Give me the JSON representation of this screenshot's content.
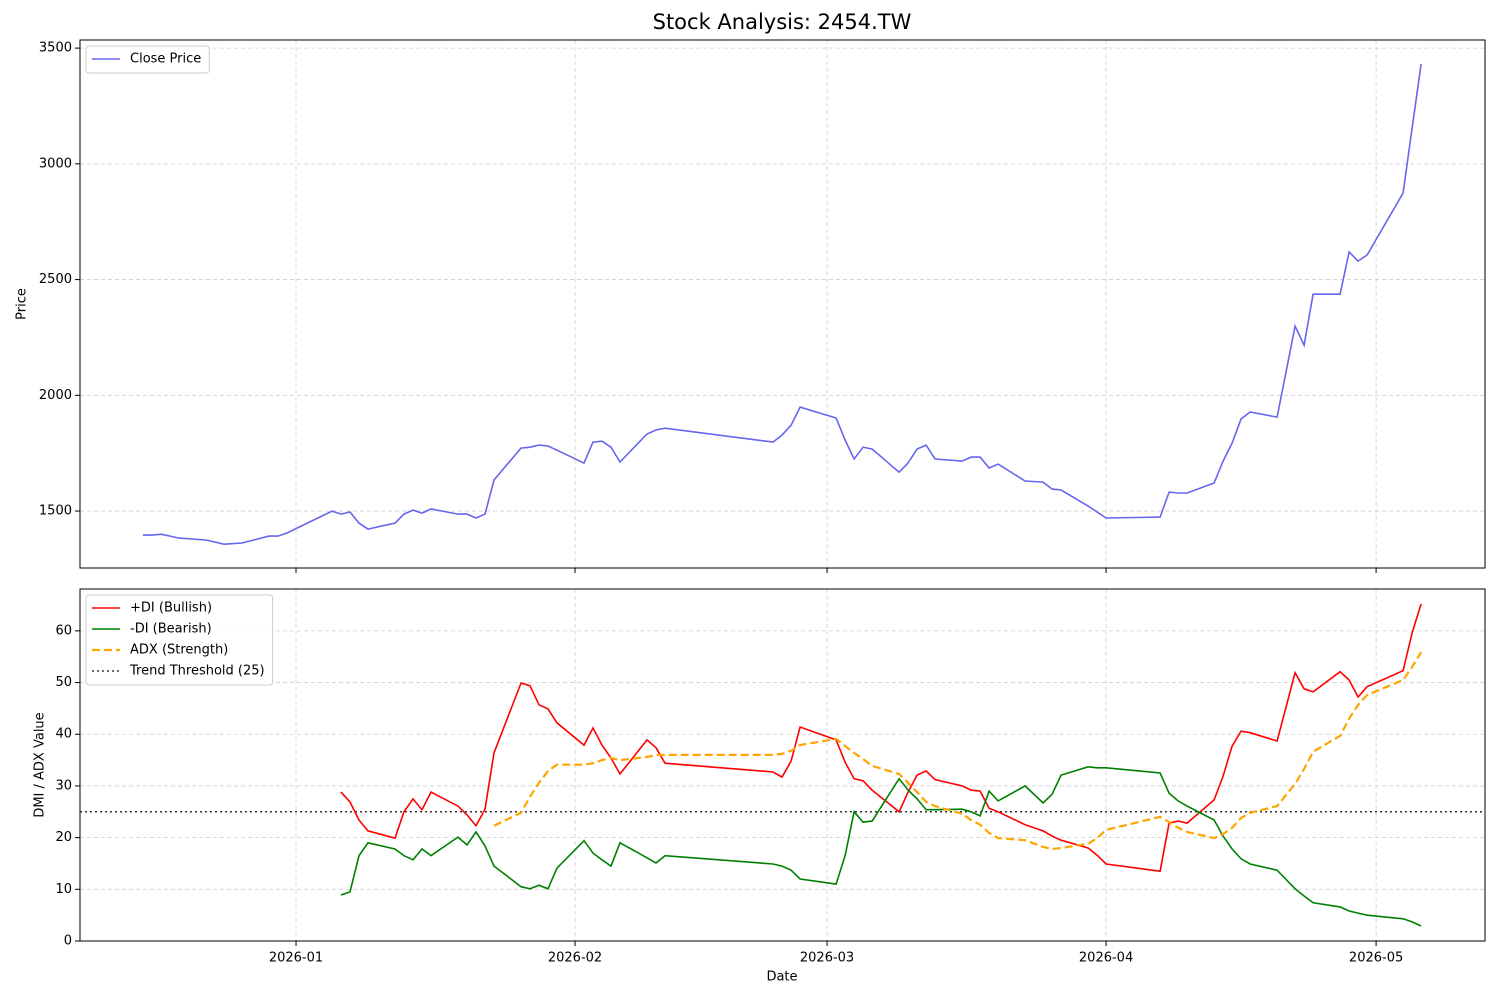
{
  "chart_data": [
    {
      "type": "line",
      "title": "Stock Analysis: 2454.TW",
      "ylabel": "Price",
      "x": [
        20437,
        20438,
        20439,
        20440,
        20441,
        20444,
        20446,
        20448,
        20451,
        20452,
        20453,
        20458,
        20459,
        20460,
        20461,
        20462,
        20465,
        20466,
        20467,
        20468,
        20469,
        20472,
        20473,
        20474,
        20475,
        20476,
        20479,
        20480,
        20481,
        20482,
        20483,
        20486,
        20487,
        20488,
        20489,
        20490,
        20493,
        20494,
        20495,
        20507,
        20508,
        20509,
        20510,
        20514,
        20515,
        20516,
        20517,
        20518,
        20521,
        20522,
        20523,
        20524,
        20525,
        20528,
        20529,
        20530,
        20531,
        20532,
        20535,
        20537,
        20538,
        20539,
        20542,
        20543,
        20544,
        20550,
        20551,
        20552,
        20553,
        20556,
        20557,
        20558,
        20559,
        20560,
        20563,
        20565,
        20566,
        20567,
        20570,
        20571,
        20572,
        20573,
        20577,
        20578,
        20579
      ],
      "series": [
        {
          "name": "Close Price",
          "color": "#6666ee",
          "linestyle": "solid",
          "values": [
            1396,
            1396,
            1400,
            1392,
            1383,
            1375,
            1357,
            1362,
            1392,
            1392,
            1405,
            1500,
            1487,
            1496,
            1448,
            1422,
            1448,
            1487,
            1504,
            1491,
            1509,
            1487,
            1487,
            1470,
            1487,
            1634,
            1772,
            1776,
            1785,
            1781,
            1763,
            1707,
            1798,
            1802,
            1776,
            1712,
            1833,
            1850,
            1858,
            1798,
            1828,
            1871,
            1949,
            1902,
            1807,
            1725,
            1776,
            1768,
            1668,
            1708,
            1768,
            1785,
            1725,
            1716,
            1733,
            1733,
            1686,
            1703,
            1630,
            1625,
            1595,
            1591,
            1522,
            1496,
            1470,
            1474,
            1582,
            1578,
            1578,
            1621,
            1716,
            1794,
            1898,
            1928,
            1906,
            2299,
            2217,
            2437,
            2437,
            2619,
            2580,
            2606,
            2874,
            3154,
            3431
          ]
        }
      ],
      "xlim": [
        20430,
        20586.1
      ],
      "ylim": [
        1254,
        3535
      ],
      "yticks": [
        1500,
        2000,
        2500,
        3000,
        3500
      ],
      "grid": true,
      "legend": "upper-left"
    },
    {
      "type": "line",
      "xlabel": "Date",
      "ylabel": "DMI / ADX Value",
      "x": [
        20459,
        20460,
        20461,
        20462,
        20465,
        20466,
        20467,
        20468,
        20469,
        20472,
        20473,
        20474,
        20475,
        20476,
        20479,
        20480,
        20481,
        20482,
        20483,
        20486,
        20487,
        20488,
        20489,
        20490,
        20493,
        20494,
        20495,
        20507,
        20508,
        20509,
        20510,
        20514,
        20515,
        20516,
        20517,
        20518,
        20521,
        20522,
        20523,
        20524,
        20525,
        20528,
        20529,
        20530,
        20531,
        20532,
        20535,
        20537,
        20538,
        20539,
        20542,
        20543,
        20544,
        20550,
        20551,
        20552,
        20553,
        20556,
        20557,
        20558,
        20559,
        20560,
        20563,
        20565,
        20566,
        20567,
        20570,
        20571,
        20572,
        20573,
        20577,
        20578,
        20579
      ],
      "series": [
        {
          "name": "+DI (Bullish)",
          "color": "red",
          "linestyle": "solid",
          "values": [
            28.8,
            26.9,
            23.4,
            21.3,
            19.9,
            25,
            27.5,
            25.4,
            28.8,
            26.1,
            24.4,
            22.3,
            25.5,
            36.4,
            49.9,
            49.4,
            45.7,
            44.9,
            42.2,
            37.9,
            41.2,
            37.9,
            35.4,
            32.3,
            38.9,
            37.4,
            34.4,
            32.7,
            31.7,
            34.8,
            41.4,
            38.9,
            34.6,
            31.4,
            31.0,
            29.2,
            25,
            28.8,
            32.1,
            32.9,
            31.2,
            30,
            29.2,
            29,
            25.7,
            25,
            22.5,
            21.3,
            20.3,
            19.5,
            18,
            16.6,
            14.9,
            13.5,
            22.8,
            23.2,
            22.8,
            27.3,
            31.9,
            37.7,
            40.6,
            40.3,
            38.7,
            51.9,
            48.8,
            48.2,
            52.1,
            50.5,
            47.2,
            49.2,
            52.3,
            59.6,
            65.2
          ]
        },
        {
          "name": "-DI (Bearish)",
          "color": "green",
          "linestyle": "solid",
          "values": [
            8.9,
            9.5,
            16.5,
            19,
            17.8,
            16.5,
            15.7,
            17.8,
            16.5,
            20.1,
            18.6,
            21.1,
            18.4,
            14.5,
            10.5,
            10.1,
            10.8,
            10.1,
            14.1,
            19.4,
            17,
            15.7,
            14.5,
            19,
            16.1,
            15.1,
            16.5,
            14.9,
            14.5,
            13.7,
            12,
            11,
            16.5,
            25,
            23,
            23.2,
            31.4,
            29.2,
            27.5,
            25.4,
            25.4,
            25.5,
            25,
            24.2,
            29,
            27.1,
            30,
            26.7,
            28.4,
            32.1,
            33.7,
            33.5,
            33.5,
            32.5,
            28.6,
            27.1,
            26.1,
            23.4,
            20.3,
            17.8,
            15.9,
            14.9,
            13.7,
            10.1,
            8.7,
            7.4,
            6.6,
            5.8,
            5.4,
            5,
            4.3,
            3.7,
            2.9
          ]
        },
        {
          "name": "ADX (Strength)",
          "color": "orange",
          "linestyle": "dashed",
          "values": [
            null,
            null,
            null,
            null,
            null,
            null,
            null,
            null,
            null,
            null,
            null,
            null,
            null,
            22.3,
            24.8,
            27.9,
            30.6,
            32.9,
            34.1,
            34.1,
            34.4,
            35,
            35.4,
            35,
            35.6,
            36,
            36,
            36,
            36.2,
            36.8,
            37.9,
            39.1,
            37.7,
            36.4,
            35.2,
            33.9,
            32.3,
            30.6,
            28.8,
            26.9,
            26.1,
            24.6,
            23.4,
            22.5,
            20.9,
            19.9,
            19.5,
            18.2,
            17.8,
            18,
            18.8,
            19.9,
            21.5,
            24,
            23,
            21.9,
            21.1,
            19.9,
            20.7,
            21.9,
            23.8,
            24.8,
            26.1,
            30.4,
            33.3,
            36.6,
            39.7,
            43,
            45.7,
            47.6,
            50.5,
            53,
            55.9
          ]
        }
      ],
      "threshold": {
        "name": "Trend Threshold (25)",
        "value": 25,
        "color": "#333333",
        "linestyle": "dotted"
      },
      "xlim": [
        20430,
        20586.1
      ],
      "xticks": [
        {
          "value": 20454,
          "label": "2026-01"
        },
        {
          "value": 20485,
          "label": "2026-02"
        },
        {
          "value": 20513,
          "label": "2026-03"
        },
        {
          "value": 20544,
          "label": "2026-04"
        },
        {
          "value": 20574,
          "label": "2026-05"
        }
      ],
      "ylim": [
        0,
        68.1
      ],
      "yticks": [
        0,
        10,
        20,
        30,
        40,
        50,
        60
      ],
      "grid": true,
      "legend": "upper-left"
    }
  ]
}
